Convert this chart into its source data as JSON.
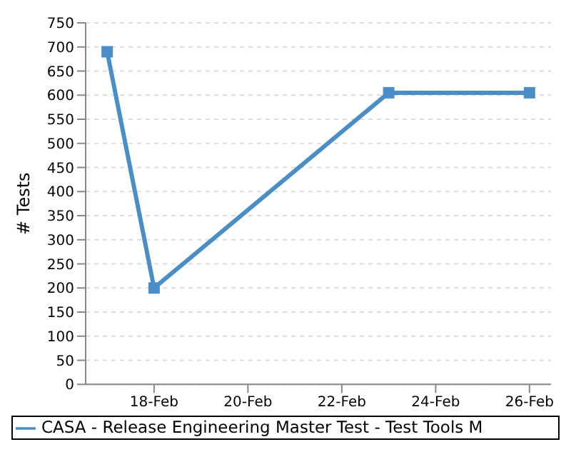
{
  "chart_data": {
    "type": "line",
    "ylabel": "# Tests",
    "x": [
      "--02-17",
      "--02-18",
      "--02-23",
      "--02-26"
    ],
    "series": [
      {
        "name": "CASA - Release Engineering Master Test - Test Tools M",
        "color": "#4a8ec8",
        "values": [
          690,
          200,
          605,
          605
        ]
      }
    ],
    "xlim": [
      "--02-16T13:00",
      "--02-26T11:00"
    ],
    "xticks": [
      {
        "value": "--02-18",
        "label": "18-Feb"
      },
      {
        "value": "--02-20",
        "label": "20-Feb"
      },
      {
        "value": "--02-22",
        "label": "22-Feb"
      },
      {
        "value": "--02-24",
        "label": "24-Feb"
      },
      {
        "value": "--02-26",
        "label": "26-Feb"
      }
    ],
    "ylim": [
      0,
      750
    ],
    "yticks": [
      0,
      50,
      100,
      150,
      200,
      250,
      300,
      350,
      400,
      450,
      500,
      550,
      600,
      650,
      700,
      750
    ],
    "grid": "y",
    "legend": "bottom",
    "marker": "square",
    "line_style": "solid"
  }
}
